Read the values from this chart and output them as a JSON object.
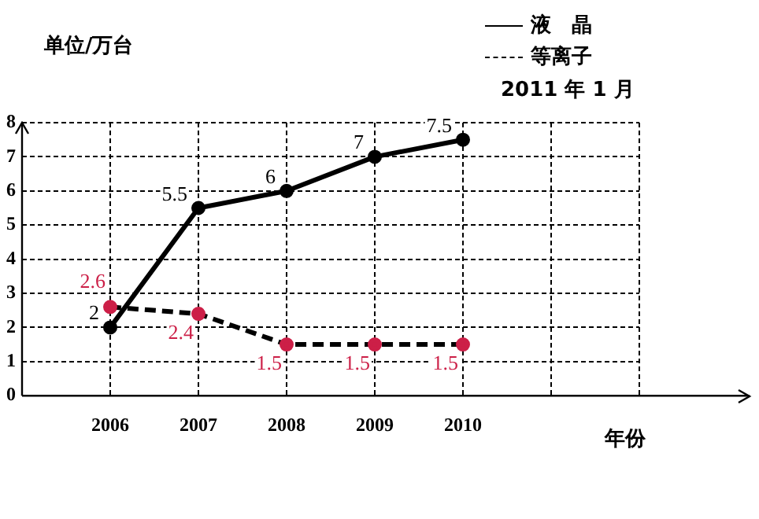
{
  "chart_data": {
    "type": "line",
    "ylabel": "单位/万台",
    "xlabel": "年份",
    "categories": [
      null,
      "2006",
      "2007",
      "2008",
      "2009",
      "2010",
      null,
      null
    ],
    "series": [
      {
        "name": "液　晶",
        "color": "#000000",
        "colors": [
          "#000000",
          "#000000",
          "#000000",
          "#000000",
          "#000000",
          "#000000",
          "#000000",
          "#000000"
        ],
        "line_style": "solid",
        "values": [
          null,
          2,
          5.5,
          6,
          7,
          7.5,
          null,
          null
        ]
      },
      {
        "name": "等离子",
        "color": "#000000",
        "colors": [
          "#cc1f47",
          "#cc1f47",
          "#cc1f47",
          "#cc1f47",
          "#cc1f47",
          "#cc1f47",
          "#cc1f47",
          "#cc1f47"
        ],
        "line_style": "dashed",
        "values": [
          null,
          2.6,
          2.4,
          1.5,
          1.5,
          1.5,
          null,
          null
        ]
      }
    ],
    "ylim": [
      0,
      8
    ],
    "yticks": [
      0,
      1,
      2,
      3,
      4,
      5,
      6,
      7,
      8
    ],
    "grid": true,
    "marker": "circle",
    "data_labels": true,
    "legend": "top right",
    "annotations": [
      "2011 年 1 月"
    ]
  }
}
